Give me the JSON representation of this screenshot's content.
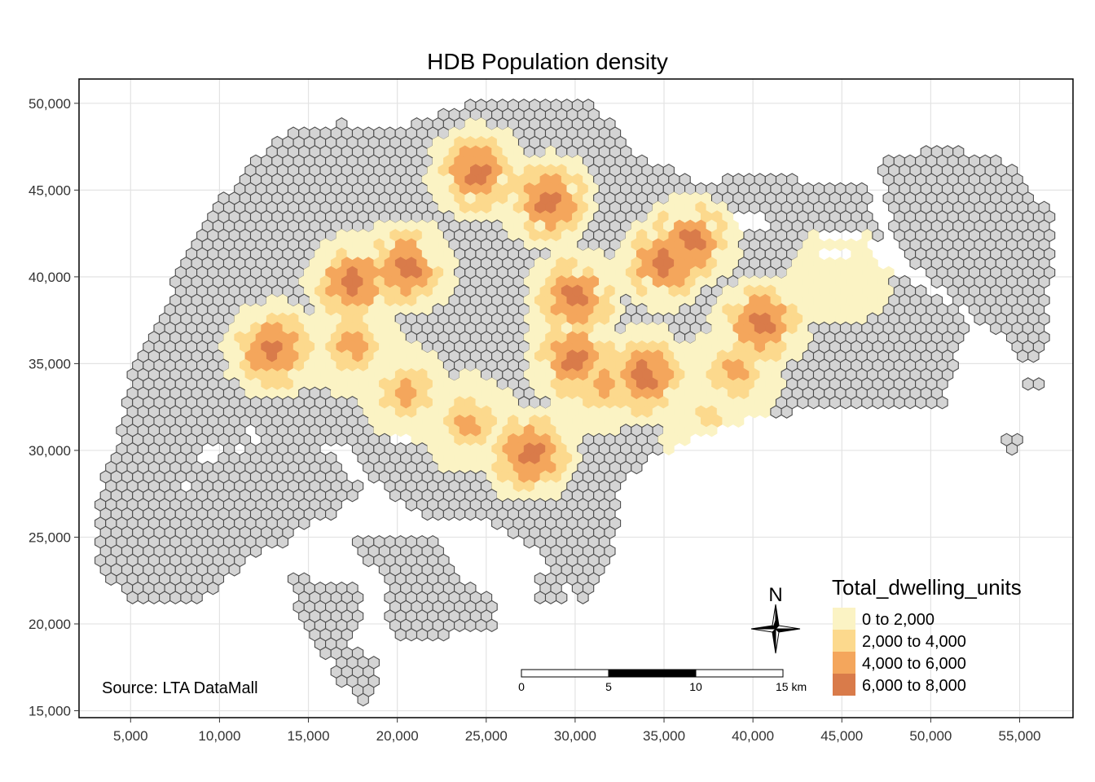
{
  "title": "HDB Population density",
  "source": "Source: LTA DataMall",
  "x_axis": {
    "range": [
      2100,
      58000
    ],
    "ticks": [
      5000,
      10000,
      15000,
      20000,
      25000,
      30000,
      35000,
      40000,
      45000,
      50000,
      55000
    ],
    "tick_labels": [
      "5,000",
      "10,000",
      "15,000",
      "20,000",
      "25,000",
      "30,000",
      "35,000",
      "40,000",
      "45,000",
      "50,000",
      "55,000"
    ]
  },
  "y_axis": {
    "range": [
      14600,
      51400
    ],
    "ticks": [
      15000,
      20000,
      25000,
      30000,
      35000,
      40000,
      45000,
      50000
    ],
    "tick_labels": [
      "15,000",
      "20,000",
      "25,000",
      "30,000",
      "35,000",
      "40,000",
      "45,000",
      "50,000"
    ]
  },
  "grid": true,
  "legend": {
    "title": "Total_dwelling_units",
    "position": "bottom-right",
    "items": [
      {
        "label": "0 to 2,000",
        "color": "#fbf3c4"
      },
      {
        "label": "2,000 to 4,000",
        "color": "#fcd98d"
      },
      {
        "label": "4,000 to 6,000",
        "color": "#f4a65c"
      },
      {
        "label": "6,000 to 8,000",
        "color": "#d97b4a"
      }
    ]
  },
  "scale_bar": {
    "labels": [
      "0",
      "5",
      "10",
      "15 km"
    ]
  },
  "north_arrow": "N",
  "colors": {
    "base_hex": "#d4d4d4",
    "hex_outline": "#4d4d4d",
    "grid": "#e3e3e3"
  },
  "chart_data": {
    "type": "heatmap",
    "title": "HDB Population density",
    "legend_title": "Total_dwelling_units",
    "classes": [
      "0 to 2,000",
      "2,000 to 4,000",
      "4,000 to 6,000",
      "6,000 to 8,000"
    ],
    "xlim": [
      2100,
      58000
    ],
    "ylim": [
      14600,
      51400
    ],
    "hotspots": [
      {
        "x": 24500,
        "y": 46000,
        "class": 3
      },
      {
        "x": 28500,
        "y": 44300,
        "class": 3
      },
      {
        "x": 20500,
        "y": 40500,
        "class": 3
      },
      {
        "x": 17500,
        "y": 39700,
        "class": 3
      },
      {
        "x": 13000,
        "y": 35800,
        "class": 3
      },
      {
        "x": 17500,
        "y": 36000,
        "class": 2
      },
      {
        "x": 20500,
        "y": 33300,
        "class": 2
      },
      {
        "x": 30000,
        "y": 38800,
        "class": 3
      },
      {
        "x": 35000,
        "y": 40800,
        "class": 3
      },
      {
        "x": 36500,
        "y": 42000,
        "class": 3
      },
      {
        "x": 40500,
        "y": 37300,
        "class": 3
      },
      {
        "x": 39000,
        "y": 34500,
        "class": 2
      },
      {
        "x": 30000,
        "y": 35300,
        "class": 3
      },
      {
        "x": 31500,
        "y": 33800,
        "class": 2
      },
      {
        "x": 34000,
        "y": 34300,
        "class": 3
      },
      {
        "x": 27500,
        "y": 29800,
        "class": 3
      },
      {
        "x": 24000,
        "y": 31500,
        "class": 2
      },
      {
        "x": 45000,
        "y": 40000,
        "class": 0
      },
      {
        "x": 37500,
        "y": 31800,
        "class": 1
      }
    ]
  }
}
